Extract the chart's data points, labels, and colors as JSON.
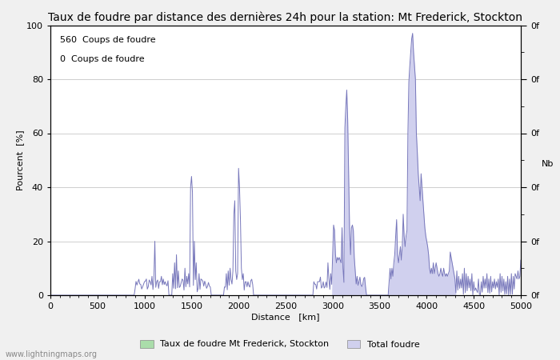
{
  "title": "Taux de foudre par distance des dernières 24h pour la station: Mt Frederick, Stockton",
  "xlabel": "Distance   [km]",
  "ylabel_left": "Pourcent  [%]",
  "ylabel_right": "Nb",
  "annotation_line1": "560  Coups de foudre",
  "annotation_line2": "0  Coups de foudre",
  "xlim": [
    0,
    5000
  ],
  "ylim": [
    0,
    100
  ],
  "xticks": [
    0,
    500,
    1000,
    1500,
    2000,
    2500,
    3000,
    3500,
    4000,
    4500,
    5000
  ],
  "yticks_left": [
    0,
    20,
    40,
    60,
    80,
    100
  ],
  "legend_label1": "Taux de foudre Mt Frederick, Stockton",
  "legend_label2": "Total foudre",
  "legend_color1": "#aaddaa",
  "legend_color2": "#ccccee",
  "watermark": "www.lightningmaps.org",
  "bg_color": "#f0f0f0",
  "plot_bg_color": "#ffffff",
  "line_color": "#7777bb",
  "fill_color": "#d0d0ee",
  "grid_color": "#bbbbbb",
  "title_fontsize": 10,
  "label_fontsize": 8,
  "tick_fontsize": 8,
  "annotation_fontsize": 8
}
